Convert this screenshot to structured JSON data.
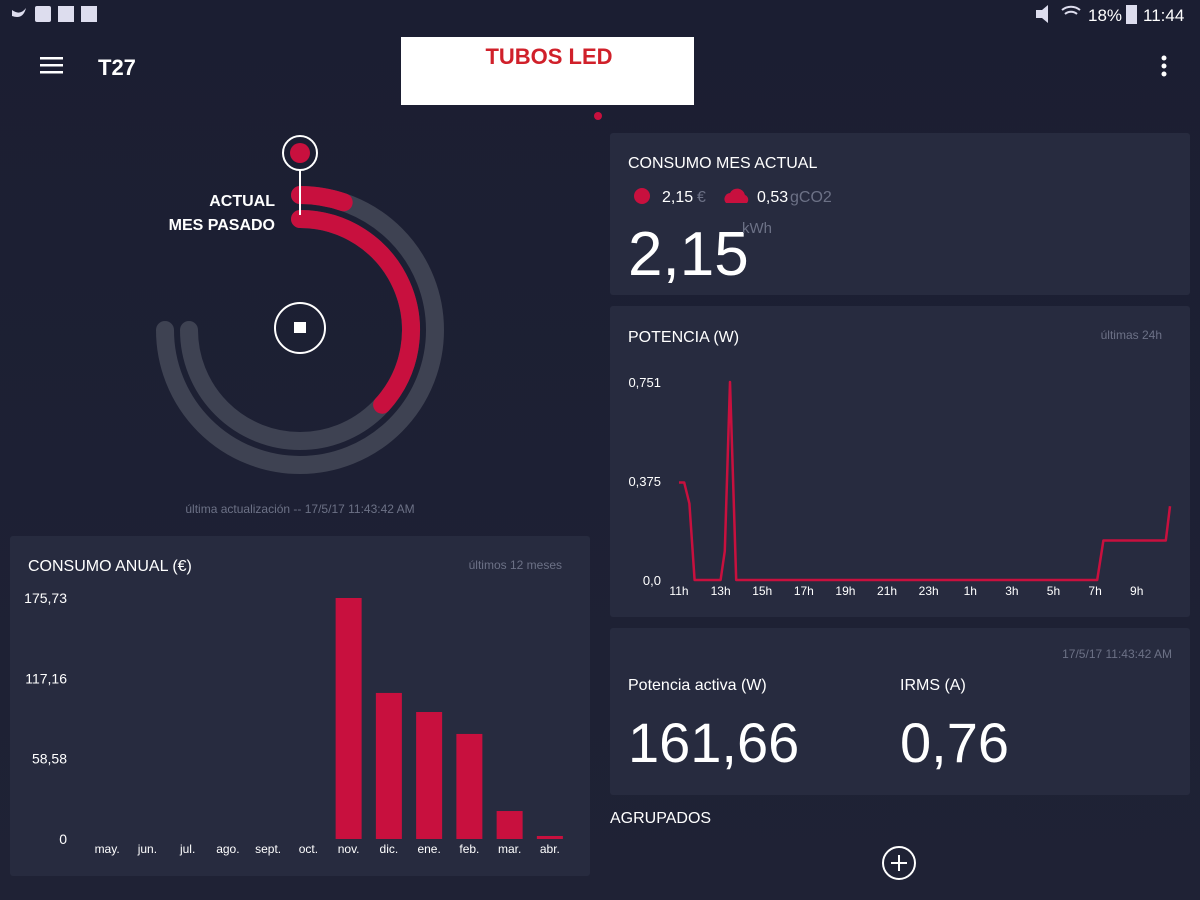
{
  "status_bar": {
    "battery": "18%",
    "time": "11:44"
  },
  "app_bar": {
    "title": "T27"
  },
  "overlay": {
    "label": "TUBOS LED"
  },
  "last_update": "última actualización -- 17/5/17 11:43:42 AM",
  "current_month": {
    "title": "CONSUMO MES ACTUAL",
    "cost": "2,15",
    "cost_unit": "€",
    "co2": "0,53",
    "co2_unit": "gCO2",
    "energy": "2,15",
    "energy_unit": "kWh"
  },
  "live": {
    "timestamp": "17/5/17 11:43:42 AM",
    "power_label": "Potencia activa (W)",
    "power": "161,66",
    "irms_label": "IRMS (A)",
    "irms": "0,76"
  },
  "groups": {
    "title": "AGRUPADOS"
  },
  "chart_data": [
    {
      "type": "bar",
      "title": "CONSUMO ANUAL (€)",
      "subtitle": "últimos 12 meses",
      "categories": [
        "may.",
        "jun.",
        "jul.",
        "ago.",
        "sept.",
        "oct.",
        "nov.",
        "dic.",
        "ene.",
        "feb.",
        "mar.",
        "abr."
      ],
      "values": [
        0,
        0,
        0,
        0,
        0,
        0,
        175.73,
        106.5,
        92.6,
        76.6,
        20.4,
        2.2
      ],
      "color": "#c8103e",
      "ylim": [
        0,
        175.73
      ],
      "yticks": [
        0,
        {
          "value": 58.58,
          "label": "58,58"
        },
        {
          "value": 117.16,
          "label": "117,16"
        },
        {
          "value": 175.73,
          "label": "175,73"
        }
      ],
      "grid": false
    },
    {
      "type": "line",
      "title": "POTENCIA (W)",
      "subtitle": "últimas 24h",
      "x": [
        0,
        0.25,
        0.5,
        0.75,
        2.0,
        2.2,
        2.45,
        2.75,
        20.1,
        20.4,
        23.4,
        23.6
      ],
      "values": [
        0.37,
        0.37,
        0.29,
        0,
        0,
        0.11,
        0.751,
        0,
        0,
        0.15,
        0.15,
        0.28
      ],
      "color": "#c8103e",
      "xlim": [
        0,
        23.6
      ],
      "xticks": [
        {
          "value": 0,
          "label": "11h"
        },
        {
          "value": 2,
          "label": "13h"
        },
        {
          "value": 4,
          "label": "15h"
        },
        {
          "value": 6,
          "label": "17h"
        },
        {
          "value": 8,
          "label": "19h"
        },
        {
          "value": 10,
          "label": "21h"
        },
        {
          "value": 12,
          "label": "23h"
        },
        {
          "value": 14,
          "label": "1h"
        },
        {
          "value": 16,
          "label": "3h"
        },
        {
          "value": 18,
          "label": "5h"
        },
        {
          "value": 20,
          "label": "7h"
        },
        {
          "value": 22,
          "label": "9h"
        }
      ],
      "ylim": [
        0,
        0.751
      ],
      "yticks": [
        {
          "value": 0,
          "label": "0,0"
        },
        {
          "value": 0.375,
          "label": "0,375"
        },
        {
          "value": 0.751,
          "label": "0,751"
        }
      ],
      "grid": false
    },
    {
      "type": "radial",
      "categories": [
        "ACTUAL",
        "MES PASADO"
      ],
      "values": [
        7,
        49
      ],
      "color": "#c8103e",
      "ylim": [
        0,
        100
      ]
    }
  ]
}
